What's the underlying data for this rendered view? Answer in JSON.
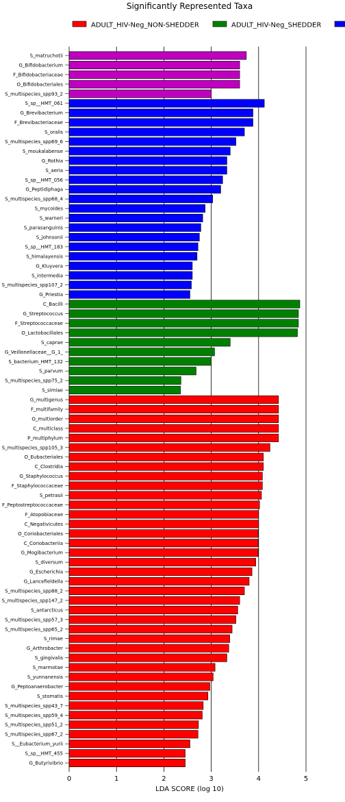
{
  "chart_data": {
    "type": "bar",
    "orientation": "horizontal",
    "title": "Significantly Represented Taxa",
    "xlabel": "LDA SCORE (log 10)",
    "ylabel": "",
    "xlim": [
      0,
      5.8
    ],
    "x_ticks": [
      "0",
      "1",
      "2",
      "3",
      "4",
      "5"
    ],
    "grid": "vertical",
    "legend_position": "top",
    "colors": {
      "ADULT_HIV-Neg_NON-SHEDDER": "#ff0000",
      "ADULT_HIV-Neg_SHEDDER": "#008000",
      "blue_group": "#0000ff",
      "magenta_group": "#bf00bf"
    },
    "legend": [
      {
        "name": "ADULT_HIV-Neg_NON-SHEDDER",
        "color": "#ff0000"
      },
      {
        "name": "ADULT_HIV-Neg_SHEDDER",
        "color": "#008000"
      },
      {
        "name": "",
        "color": "#0000ff"
      }
    ],
    "bars": [
      {
        "label": "S_matruchotii",
        "value": 3.74,
        "color": "#bf00bf"
      },
      {
        "label": "G_Bifidobacterium",
        "value": 3.6,
        "color": "#bf00bf"
      },
      {
        "label": "F_Bifidobacteriaceae",
        "value": 3.6,
        "color": "#bf00bf"
      },
      {
        "label": "O_Bifidobacteriales",
        "value": 3.6,
        "color": "#bf00bf"
      },
      {
        "label": "S_multispecies_spp93_2",
        "value": 3.0,
        "color": "#bf00bf"
      },
      {
        "label": "S_sp__HMT_061",
        "value": 4.12,
        "color": "#0000ff"
      },
      {
        "label": "G_Brevibacterium",
        "value": 3.88,
        "color": "#0000ff"
      },
      {
        "label": "F_Brevibacteriaceae",
        "value": 3.88,
        "color": "#0000ff"
      },
      {
        "label": "S_oralis",
        "value": 3.7,
        "color": "#0000ff"
      },
      {
        "label": "S_multispecies_spp69_6",
        "value": 3.52,
        "color": "#0000ff"
      },
      {
        "label": "S_moukalabense",
        "value": 3.4,
        "color": "#0000ff"
      },
      {
        "label": "G_Rothia",
        "value": 3.33,
        "color": "#0000ff"
      },
      {
        "label": "S_aeria",
        "value": 3.33,
        "color": "#0000ff"
      },
      {
        "label": "S_sp__HMT_056",
        "value": 3.24,
        "color": "#0000ff"
      },
      {
        "label": "G_Peptidiphaga",
        "value": 3.2,
        "color": "#0000ff"
      },
      {
        "label": "S_multispecies_spp68_4",
        "value": 3.03,
        "color": "#0000ff"
      },
      {
        "label": "S_mycoides",
        "value": 2.87,
        "color": "#0000ff"
      },
      {
        "label": "S_warneri",
        "value": 2.82,
        "color": "#0000ff"
      },
      {
        "label": "S_parasanguinis",
        "value": 2.78,
        "color": "#0000ff"
      },
      {
        "label": "S_johnsonii",
        "value": 2.75,
        "color": "#0000ff"
      },
      {
        "label": "S_sp__HMT_183",
        "value": 2.72,
        "color": "#0000ff"
      },
      {
        "label": "S_himalayensis",
        "value": 2.7,
        "color": "#0000ff"
      },
      {
        "label": "G_Kluyvera",
        "value": 2.6,
        "color": "#0000ff"
      },
      {
        "label": "S_intermedia",
        "value": 2.6,
        "color": "#0000ff"
      },
      {
        "label": "S_multispecies_spp107_2",
        "value": 2.58,
        "color": "#0000ff"
      },
      {
        "label": "G_Priestia",
        "value": 2.55,
        "color": "#0000ff"
      },
      {
        "label": "C_Bacilli",
        "value": 4.87,
        "color": "#008000"
      },
      {
        "label": "G_Streptococcus",
        "value": 4.84,
        "color": "#008000"
      },
      {
        "label": "F_Streptococcaceae",
        "value": 4.84,
        "color": "#008000"
      },
      {
        "label": "O_Lactobacillales",
        "value": 4.82,
        "color": "#008000"
      },
      {
        "label": "S_caprae",
        "value": 3.4,
        "color": "#008000"
      },
      {
        "label": "G_Veillonellaceae__G_1_",
        "value": 3.07,
        "color": "#008000"
      },
      {
        "label": "S_bacterium_HMT_132",
        "value": 3.0,
        "color": "#008000"
      },
      {
        "label": "S_parvum",
        "value": 2.68,
        "color": "#008000"
      },
      {
        "label": "S_multispecies_spp75_2",
        "value": 2.36,
        "color": "#008000"
      },
      {
        "label": "S_simiae",
        "value": 2.35,
        "color": "#008000"
      },
      {
        "label": "G_multigenus",
        "value": 4.42,
        "color": "#ff0000"
      },
      {
        "label": "F_multifamily",
        "value": 4.42,
        "color": "#ff0000"
      },
      {
        "label": "O_multiorder",
        "value": 4.42,
        "color": "#ff0000"
      },
      {
        "label": "C_multiclass",
        "value": 4.42,
        "color": "#ff0000"
      },
      {
        "label": "P_multiphylum",
        "value": 4.42,
        "color": "#ff0000"
      },
      {
        "label": "S_multispecies_spp105_3",
        "value": 4.24,
        "color": "#ff0000"
      },
      {
        "label": "O_Eubacteriales",
        "value": 4.1,
        "color": "#ff0000"
      },
      {
        "label": "C_Clostridia",
        "value": 4.1,
        "color": "#ff0000"
      },
      {
        "label": "G_Staphylococcus",
        "value": 4.08,
        "color": "#ff0000"
      },
      {
        "label": "F_Staphylococcaceae",
        "value": 4.08,
        "color": "#ff0000"
      },
      {
        "label": "S_petrasii",
        "value": 4.06,
        "color": "#ff0000"
      },
      {
        "label": "F_Peptostreptococcaceae",
        "value": 4.02,
        "color": "#ff0000"
      },
      {
        "label": "F_Atopobiaceae",
        "value": 4.0,
        "color": "#ff0000"
      },
      {
        "label": "C_Negativicutes",
        "value": 4.0,
        "color": "#ff0000"
      },
      {
        "label": "O_Coriobacteriales",
        "value": 3.99,
        "color": "#ff0000"
      },
      {
        "label": "C_Coriobacteriia",
        "value": 3.99,
        "color": "#ff0000"
      },
      {
        "label": "G_Mogibacterium",
        "value": 3.99,
        "color": "#ff0000"
      },
      {
        "label": "S_diversum",
        "value": 3.94,
        "color": "#ff0000"
      },
      {
        "label": "G_Escherichia",
        "value": 3.86,
        "color": "#ff0000"
      },
      {
        "label": "G_Lancefieldella",
        "value": 3.8,
        "color": "#ff0000"
      },
      {
        "label": "S_multispecies_spp88_2",
        "value": 3.7,
        "color": "#ff0000"
      },
      {
        "label": "S_multispecies_spp147_2",
        "value": 3.6,
        "color": "#ff0000"
      },
      {
        "label": "S_antarcticus",
        "value": 3.56,
        "color": "#ff0000"
      },
      {
        "label": "S_multispecies_spp57_3",
        "value": 3.52,
        "color": "#ff0000"
      },
      {
        "label": "S_multispecies_spp65_2",
        "value": 3.44,
        "color": "#ff0000"
      },
      {
        "label": "S_rimae",
        "value": 3.39,
        "color": "#ff0000"
      },
      {
        "label": "G_Arthrobacter",
        "value": 3.37,
        "color": "#ff0000"
      },
      {
        "label": "S_gingivalis",
        "value": 3.33,
        "color": "#ff0000"
      },
      {
        "label": "S_marmotae",
        "value": 3.08,
        "color": "#ff0000"
      },
      {
        "label": "S_yunnanensis",
        "value": 3.04,
        "color": "#ff0000"
      },
      {
        "label": "G_Peptoanaerobacter",
        "value": 2.97,
        "color": "#ff0000"
      },
      {
        "label": "S_stomatis",
        "value": 2.93,
        "color": "#ff0000"
      },
      {
        "label": "S_multispecies_spp43_7",
        "value": 2.83,
        "color": "#ff0000"
      },
      {
        "label": "S_multispecies_spp59_4",
        "value": 2.81,
        "color": "#ff0000"
      },
      {
        "label": "S_multispecies_spp51_2",
        "value": 2.73,
        "color": "#ff0000"
      },
      {
        "label": "S_multispecies_spp67_2",
        "value": 2.72,
        "color": "#ff0000"
      },
      {
        "label": "S__Eubacterium_yurii",
        "value": 2.55,
        "color": "#ff0000"
      },
      {
        "label": "S_sp__HMT_455",
        "value": 2.45,
        "color": "#ff0000"
      },
      {
        "label": "G_Butyrivibrio",
        "value": 2.45,
        "color": "#ff0000"
      }
    ]
  }
}
